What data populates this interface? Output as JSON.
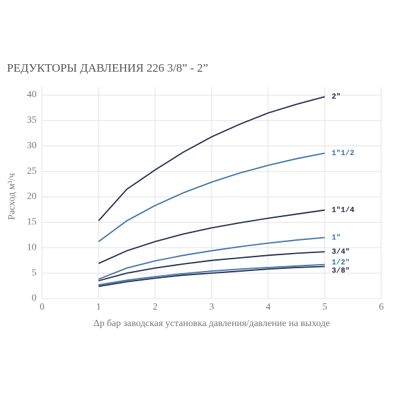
{
  "chart_data": {
    "type": "line",
    "title": "РЕДУКТОРЫ ДАВЛЕНИЯ 226 3/8” - 2”",
    "x_label": "Δp бар заводская установка давления/давление на выходе",
    "y_label": "Расход м³/ч",
    "x": [
      1,
      1.5,
      2,
      2.5,
      3,
      3.5,
      4,
      4.5,
      5
    ],
    "xlim": [
      0,
      6
    ],
    "xticks": [
      0,
      1,
      2,
      3,
      4,
      5,
      6
    ],
    "ylim": [
      0,
      40
    ],
    "yticks": [
      0,
      5,
      10,
      15,
      20,
      25,
      30,
      35,
      40
    ],
    "grid": true,
    "series": [
      {
        "name": "2\"",
        "color": "#1e2b4d",
        "values": [
          15.3,
          21.5,
          25.3,
          28.8,
          31.8,
          34.3,
          36.5,
          38.2,
          39.7
        ]
      },
      {
        "name": "1\"1/2",
        "color": "#3b72a6",
        "values": [
          11.2,
          15.3,
          18.3,
          20.8,
          22.9,
          24.7,
          26.2,
          27.5,
          28.6
        ]
      },
      {
        "name": "1\"1/4",
        "color": "#1e2b4d",
        "values": [
          6.9,
          9.4,
          11.2,
          12.7,
          13.9,
          14.9,
          15.8,
          16.6,
          17.4
        ]
      },
      {
        "name": "1\"",
        "color": "#3b72a6",
        "values": [
          3.8,
          6.0,
          7.4,
          8.5,
          9.4,
          10.2,
          10.9,
          11.5,
          12.0
        ]
      },
      {
        "name": "3/4\"",
        "color": "#1e2b4d",
        "values": [
          3.5,
          5.0,
          6.0,
          6.8,
          7.5,
          8.0,
          8.5,
          8.9,
          9.2
        ]
      },
      {
        "name": "1/2\"",
        "color": "#3b72a6",
        "values": [
          2.7,
          3.6,
          4.3,
          4.9,
          5.4,
          5.8,
          6.1,
          6.4,
          6.7
        ]
      },
      {
        "name": "3/8\"",
        "color": "#1e2b4d",
        "values": [
          2.4,
          3.3,
          4.0,
          4.6,
          5.0,
          5.4,
          5.8,
          6.1,
          6.3
        ]
      }
    ]
  }
}
